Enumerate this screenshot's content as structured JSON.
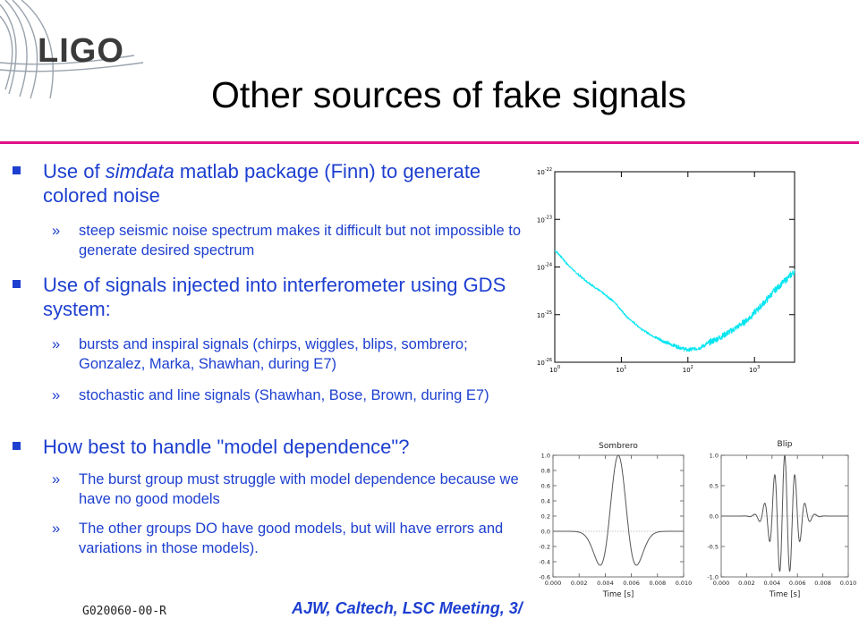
{
  "logo": {
    "text": "LIGO"
  },
  "title": "Other sources of fake signals",
  "bullets": [
    {
      "pre": "Use of ",
      "em": "simdata",
      "post": " matlab package (Finn) to generate colored noise",
      "subs": [
        "steep seismic noise spectrum makes it difficult but not impossible to generate desired spectrum"
      ]
    },
    {
      "pre": "Use of signals injected into interferometer using GDS system:",
      "em": "",
      "post": "",
      "subs": [
        "bursts and inspiral signals (chirps, wiggles, blips, sombrero; Gonzalez, Marka, Shawhan, during E7)",
        "stochastic and line signals (Shawhan, Bose, Brown, during E7)"
      ]
    },
    {
      "pre": "How best to handle \"model dependence\"?",
      "em": "",
      "post": "",
      "subs": [
        "The burst group must struggle with model dependence because we have no good models",
        "The other groups DO have good models, but will have errors and variations in those models)."
      ]
    }
  ],
  "footer": {
    "doc_id": "G020060-00-R",
    "credit": "AJW, Caltech, LSC Meeting, 3/"
  },
  "colors": {
    "accent_rule": "#e0108a",
    "text_blue": "#1d3fd0",
    "spectrum": "#00e5f0"
  },
  "chart_data": [
    {
      "type": "line",
      "title": "",
      "xscale": "log",
      "yscale": "log",
      "xlim": [
        1,
        4000
      ],
      "ylim": [
        1e-26,
        1e-22
      ],
      "x_tick_labels": [
        "10^0",
        "10^1",
        "10^2",
        "10^3"
      ],
      "y_tick_labels": [
        "10^-22",
        "10^-23",
        "10^-24",
        "10^-25",
        "10^-26"
      ],
      "series": [
        {
          "x": [
            1,
            1.1,
            1.5,
            2,
            3,
            5,
            8,
            12,
            20,
            30,
            50,
            80,
            100,
            150,
            200,
            300,
            500,
            800,
            1000,
            1500,
            2000,
            3000,
            4000
          ],
          "y": [
            2.2e-24,
            2e-24,
            1.2e-24,
            8e-25,
            5e-25,
            3e-25,
            1.8e-25,
            9e-26,
            5e-26,
            3.5e-26,
            2.5e-26,
            2e-26,
            1.8e-26,
            2e-26,
            2.5e-26,
            3.3e-26,
            5e-26,
            8e-26,
            1.1e-25,
            2e-25,
            3.2e-25,
            5.5e-25,
            8e-25
          ]
        }
      ]
    },
    {
      "type": "line",
      "title": "Sombrero",
      "xlabel": "Time [s]",
      "xlim": [
        0,
        0.01
      ],
      "ylim": [
        -0.6,
        1.0
      ],
      "x_ticks": [
        0.0,
        0.002,
        0.004,
        0.006,
        0.008,
        0.01
      ],
      "x_tick_labels": [
        "0.000",
        "0.002",
        "0.004",
        "0.006",
        "0.008",
        "0.010"
      ],
      "y_ticks": [
        -0.6,
        -0.4,
        -0.2,
        0.0,
        0.2,
        0.4,
        0.6,
        0.8,
        1.0
      ],
      "y_tick_labels": [
        "-0.6",
        "-0.4",
        "-0.2",
        "0.0",
        "0.2",
        "0.4",
        "0.6",
        "0.8",
        "1.0"
      ],
      "series": [
        {
          "x": [
            0,
            0.002,
            0.0025,
            0.003,
            0.0035,
            0.004,
            0.0045,
            0.005,
            0.0055,
            0.006,
            0.0065,
            0.007,
            0.0075,
            0.008,
            0.01
          ],
          "y": [
            0,
            0,
            -0.05,
            -0.3,
            -0.45,
            0.1,
            0.75,
            1.0,
            0.75,
            0.1,
            -0.45,
            -0.3,
            -0.05,
            0,
            0
          ]
        }
      ]
    },
    {
      "type": "line",
      "title": "Blip",
      "xlabel": "Time [s]",
      "xlim": [
        0,
        0.01
      ],
      "ylim": [
        -1.0,
        1.0
      ],
      "x_ticks": [
        0.0,
        0.002,
        0.004,
        0.006,
        0.008,
        0.01
      ],
      "x_tick_labels": [
        "0.000",
        "0.002",
        "0.004",
        "0.006",
        "0.008",
        "0.010"
      ],
      "y_ticks": [
        -1.0,
        -0.5,
        0.0,
        0.5,
        1.0
      ],
      "y_tick_labels": [
        "-1.0",
        "-0.5",
        "0.0",
        "0.5",
        "1.0"
      ],
      "series": [
        {
          "center": 0.005,
          "width": 0.0018,
          "frequency_hz": 1250,
          "amplitude": 1.0
        }
      ]
    }
  ]
}
